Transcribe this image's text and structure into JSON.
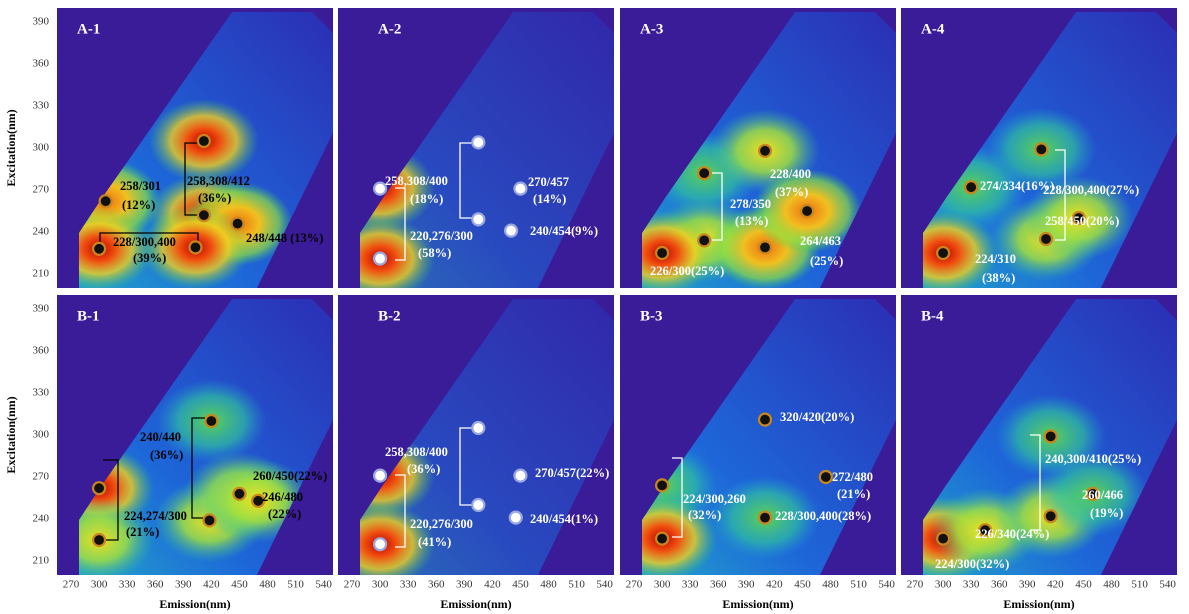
{
  "figure": {
    "xlabel": "Emission(nm)",
    "ylabel": "Excitation(nm)",
    "xlim": [
      255,
      550
    ],
    "ylim": [
      200,
      400
    ],
    "xticks": [
      270,
      300,
      330,
      360,
      390,
      420,
      450,
      480,
      510,
      540
    ],
    "yticks": [
      210,
      240,
      270,
      300,
      330,
      360,
      390
    ],
    "panels": [
      {
        "label": "A-1",
        "marker": "#111",
        "text_color": "#000",
        "peaks": [
          [
            307,
            262
          ],
          [
            412,
            305
          ],
          [
            412,
            252
          ],
          [
            448,
            246
          ],
          [
            300,
            228
          ],
          [
            403,
            229
          ]
        ],
        "annotations": [
          "258/301",
          "(12%)",
          "258,308/412",
          "(36%)",
          "248/448 (13%)",
          "228/300,400",
          "(39%)"
        ]
      },
      {
        "label": "A-2",
        "marker": "#fff",
        "text_color": "#fff",
        "peaks": [
          [
            300,
            271
          ],
          [
            300,
            221
          ],
          [
            405,
            304
          ],
          [
            405,
            249
          ],
          [
            450,
            271
          ],
          [
            440,
            241
          ]
        ],
        "annotations": [
          "258,308/400",
          "(18%)",
          "270/457",
          "(14%)",
          "240/454(9%)",
          "220,276/300",
          "(58%)"
        ]
      },
      {
        "label": "A-3",
        "marker": "#111",
        "text_color": "#fff",
        "peaks": [
          [
            345,
            282
          ],
          [
            345,
            234
          ],
          [
            410,
            298
          ],
          [
            410,
            229
          ],
          [
            455,
            255
          ],
          [
            300,
            225
          ]
        ],
        "annotations": [
          "228/400",
          "(37%)",
          "278/350",
          "(13%)",
          "264/463",
          "(25%)",
          "226/300(25%)"
        ]
      },
      {
        "label": "A-4",
        "marker": "#111",
        "text_color": "#fff",
        "peaks": [
          [
            330,
            272
          ],
          [
            405,
            299
          ],
          [
            410,
            235
          ],
          [
            445,
            250
          ],
          [
            300,
            225
          ]
        ],
        "annotations": [
          "274/334(16%)",
          "228/300,400(27%)",
          "258/450(20%)",
          "224/310",
          "(38%)"
        ]
      },
      {
        "label": "B-1",
        "marker": "#111",
        "text_color": "#000",
        "peaks": [
          [
            300,
            262
          ],
          [
            420,
            310
          ],
          [
            300,
            225
          ],
          [
            418,
            239
          ],
          [
            450,
            258
          ],
          [
            470,
            253
          ]
        ],
        "annotations": [
          "240/440",
          "(36%)",
          "260/450(22%)",
          "246/480",
          "(22%)",
          "224,274/300",
          "(21%)"
        ]
      },
      {
        "label": "B-2",
        "marker": "#fff",
        "text_color": "#fff",
        "peaks": [
          [
            300,
            271
          ],
          [
            300,
            222
          ],
          [
            405,
            305
          ],
          [
            405,
            250
          ],
          [
            450,
            271
          ],
          [
            445,
            241
          ]
        ],
        "annotations": [
          "258,308/400",
          "(36%)",
          "270/457(22%)",
          "240/454(1%)",
          "220,276/300",
          "(41%)"
        ]
      },
      {
        "label": "B-3",
        "marker": "#111",
        "text_color": "#fff",
        "peaks": [
          [
            300,
            264
          ],
          [
            300,
            226
          ],
          [
            410,
            311
          ],
          [
            410,
            241
          ],
          [
            475,
            270
          ]
        ],
        "annotations": [
          "320/420(20%)",
          "272/480",
          "(21%)",
          "224/300,260",
          "(32%)",
          "228/300,400(28%)"
        ]
      },
      {
        "label": "B-4",
        "marker": "#111",
        "text_color": "#fff",
        "peaks": [
          [
            300,
            226
          ],
          [
            345,
            232
          ],
          [
            415,
            299
          ],
          [
            415,
            242
          ],
          [
            460,
            258
          ]
        ],
        "annotations": [
          "240,300/410(25%)",
          "260/466",
          "(19%)",
          "226/340(24%)",
          "224/300(32%)"
        ]
      }
    ]
  }
}
